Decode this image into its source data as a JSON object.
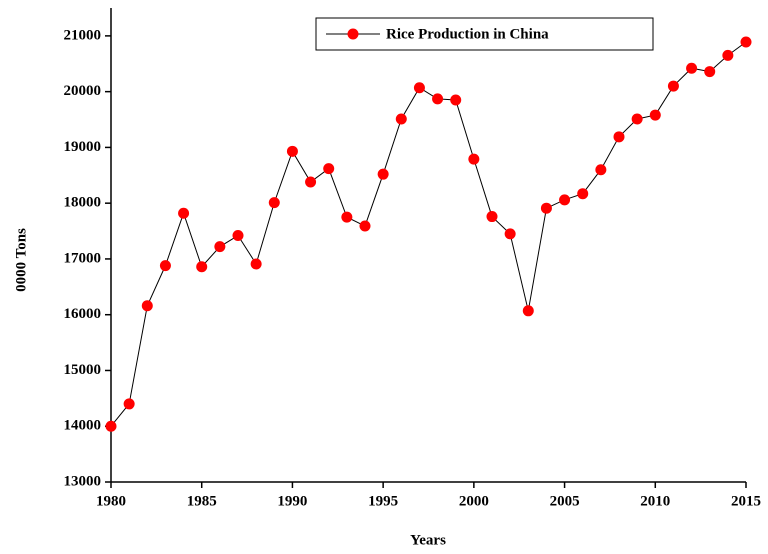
{
  "chart_data": {
    "type": "line",
    "xlabel": "Years",
    "ylabel": "0000 Tons",
    "x": [
      1980,
      1981,
      1982,
      1983,
      1984,
      1985,
      1986,
      1987,
      1988,
      1989,
      1990,
      1991,
      1992,
      1993,
      1994,
      1995,
      1996,
      1997,
      1998,
      1999,
      2000,
      2001,
      2002,
      2003,
      2004,
      2005,
      2006,
      2007,
      2008,
      2009,
      2010,
      2011,
      2012,
      2013,
      2014,
      2015
    ],
    "series": [
      {
        "name": "Rice Production in China",
        "color": "#ff0000",
        "values": [
          14000,
          14400,
          16160,
          16880,
          17820,
          16860,
          17220,
          17420,
          16910,
          18010,
          18930,
          18380,
          18620,
          17750,
          17590,
          18520,
          19510,
          20070,
          19870,
          19850,
          18790,
          17760,
          17450,
          16070,
          17910,
          18060,
          18170,
          18600,
          19190,
          19510,
          19580,
          20100,
          20420,
          20360,
          20650,
          20890
        ]
      }
    ],
    "xlim": [
      1980,
      2015
    ],
    "xticks": [
      1980,
      1985,
      1990,
      1995,
      2000,
      2005,
      2010,
      2015
    ],
    "ylim": [
      13000,
      21500
    ],
    "yticks": [
      13000,
      14000,
      15000,
      16000,
      17000,
      18000,
      19000,
      20000,
      21000
    ],
    "legend": "top-right"
  }
}
